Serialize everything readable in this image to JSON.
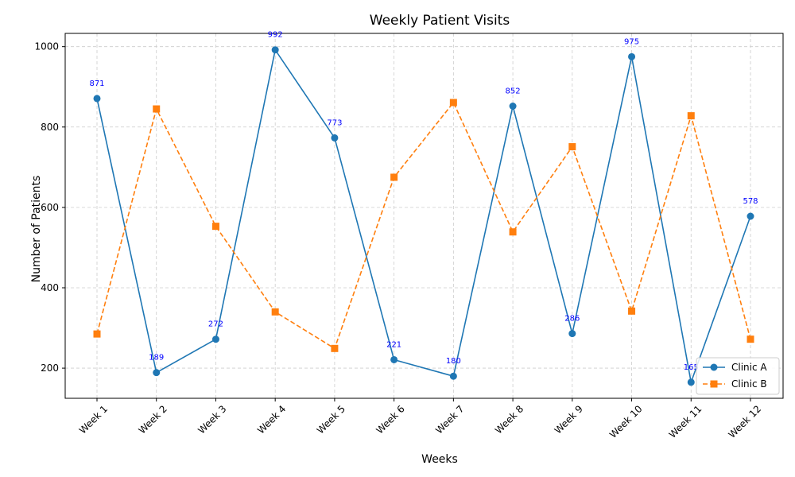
{
  "chart_data": {
    "type": "line",
    "title": "Weekly Patient Visits",
    "xlabel": "Weeks",
    "ylabel": "Number of Patients",
    "categories": [
      "Week 1",
      "Week 2",
      "Week 3",
      "Week 4",
      "Week 5",
      "Week 6",
      "Week 7",
      "Week 8",
      "Week 9",
      "Week 10",
      "Week 11",
      "Week 12"
    ],
    "ylim": [
      125,
      1033
    ],
    "yticks": [
      200,
      400,
      600,
      800,
      1000
    ],
    "grid": true,
    "legend_position": "bottom-right",
    "series": [
      {
        "name": "Clinic A",
        "color": "#1f77b4",
        "marker": "circle",
        "line_style": "solid",
        "values": [
          871,
          189,
          272,
          992,
          773,
          221,
          180,
          852,
          286,
          975,
          165,
          578
        ],
        "labels": [
          "871",
          "189",
          "272",
          "992",
          "773",
          "221",
          "180",
          "852",
          "286",
          "975",
          "165",
          "578"
        ]
      },
      {
        "name": "Clinic B",
        "color": "#ff7f0e",
        "marker": "square",
        "line_style": "dashed",
        "values": [
          285,
          845,
          553,
          340,
          249,
          675,
          861,
          539,
          751,
          342,
          828,
          272
        ]
      }
    ]
  }
}
